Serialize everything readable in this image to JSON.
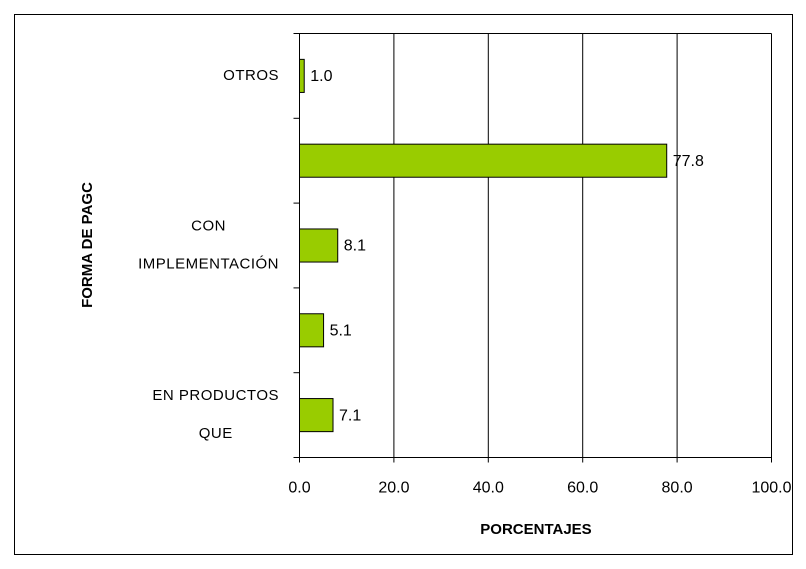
{
  "chart_data": {
    "type": "barh",
    "categories": [
      [
        "OTROS"
      ],
      null,
      [
        "CON",
        "IMPLEMENTACIÓN"
      ],
      null,
      [
        "EN PRODUCTOS",
        "QUE"
      ]
    ],
    "values": [
      1.0,
      77.8,
      8.1,
      5.1,
      7.1
    ],
    "value_labels": [
      "1.0",
      "77.8",
      "8.1",
      "5.1",
      "7.1"
    ],
    "color": "#99cc00",
    "xlabel": "PORCENTAJES",
    "ylabel": "FORMA DE PAGC",
    "xlim": [
      0,
      100
    ],
    "xticks": [
      {
        "value": 0,
        "label": "0.0"
      },
      {
        "value": 20,
        "label": "20.0"
      },
      {
        "value": 40,
        "label": "40.0"
      },
      {
        "value": 60,
        "label": "60.0"
      },
      {
        "value": 80,
        "label": "80.0"
      },
      {
        "value": 100,
        "label": "100.0"
      }
    ],
    "grid": true
  }
}
